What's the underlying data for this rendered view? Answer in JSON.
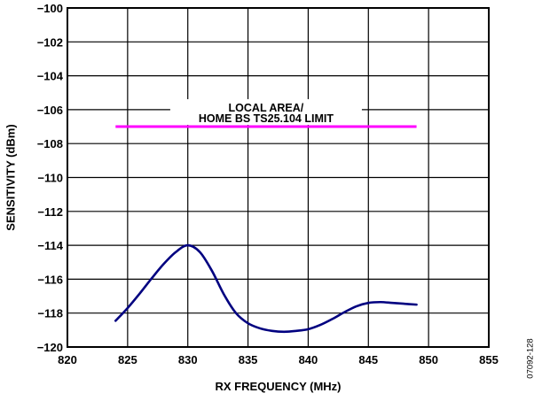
{
  "chart_data": {
    "type": "line",
    "xlabel": "RX FREQUENCY (MHz)",
    "ylabel": "SENSITIVITY (dBm)",
    "xlim": [
      820,
      855
    ],
    "ylim": [
      -120,
      -100
    ],
    "x_ticks": [
      820,
      825,
      830,
      835,
      840,
      845,
      850,
      855
    ],
    "y_ticks": [
      -100,
      -102,
      -104,
      -106,
      -108,
      -110,
      -112,
      -114,
      -116,
      -118,
      -120
    ],
    "x_tick_labels": [
      "820",
      "825",
      "830",
      "835",
      "840",
      "845",
      "850",
      "855"
    ],
    "y_tick_labels": [
      "−100",
      "−102",
      "−104",
      "−106",
      "−108",
      "−110",
      "−112",
      "−114",
      "−116",
      "−118",
      "−120"
    ],
    "grid": true,
    "series": [
      {
        "color": "#000080",
        "x": [
          824,
          825,
          826,
          827,
          828,
          829,
          830,
          831,
          832,
          833,
          834,
          835,
          836,
          837,
          838,
          839,
          840,
          841,
          842,
          843,
          844,
          845,
          846,
          847,
          848,
          849
        ],
        "values": [
          -118.45,
          -117.7,
          -116.85,
          -115.95,
          -115.1,
          -114.4,
          -114.0,
          -114.4,
          -115.5,
          -116.9,
          -118.0,
          -118.6,
          -118.9,
          -119.05,
          -119.1,
          -119.05,
          -118.95,
          -118.7,
          -118.35,
          -117.95,
          -117.6,
          -117.4,
          -117.35,
          -117.4,
          -117.45,
          -117.5
        ]
      }
    ],
    "limit_line": {
      "label_lines": [
        "LOCAL AREA/",
        "HOME BS TS25.104 LIMIT"
      ],
      "y": -107,
      "x_start": 824,
      "x_end": 849,
      "color": "#ff00ff"
    }
  },
  "figure_id": "07092-128"
}
